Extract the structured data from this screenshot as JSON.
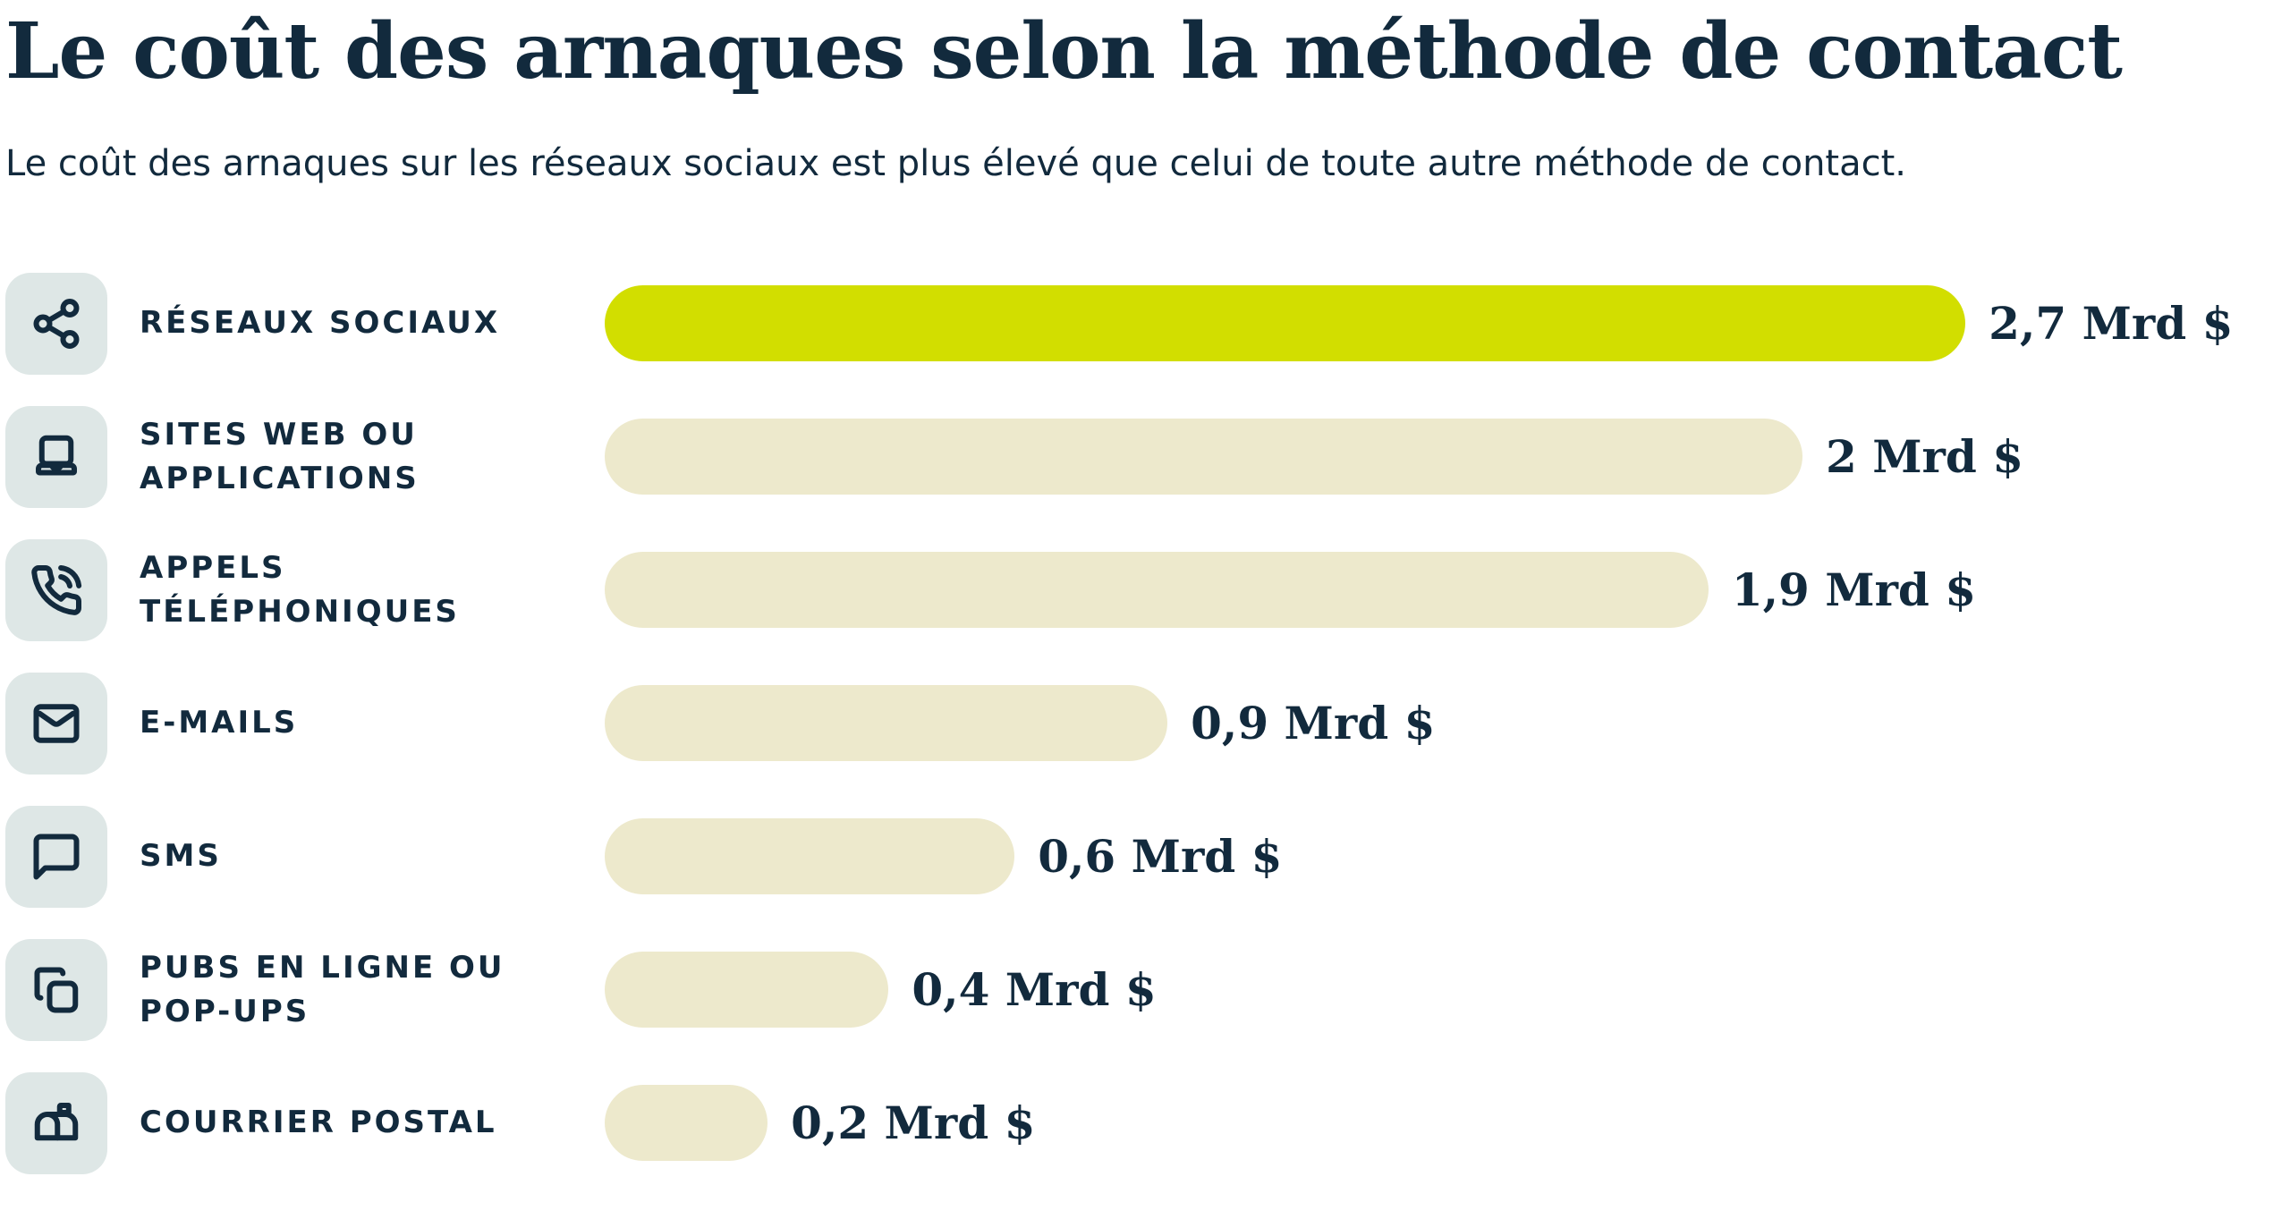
{
  "header": {
    "title": "Le coût des arnaques selon la méthode de contact",
    "subtitle": "Le coût des arnaques sur les réseaux sociaux est plus élevé que celui de toute autre méthode de contact."
  },
  "colors": {
    "text_navy": "#122a3d",
    "bar_highlight": "#d2de00",
    "bar_default": "#ede9cc",
    "icon_tile_bg": "#dee7e6",
    "background": "#ffffff"
  },
  "chart_data": {
    "type": "bar",
    "orientation": "horizontal",
    "title": "Le coût des arnaques selon la méthode de contact",
    "subtitle": "Le coût des arnaques sur les réseaux sociaux est plus élevé que celui de toute autre méthode de contact.",
    "unit": "Mrd $ (milliards de dollars)",
    "x_range": [
      0,
      2.7
    ],
    "grid": false,
    "legend": false,
    "categories": [
      "Réseaux sociaux",
      "Sites web ou applications",
      "Appels téléphoniques",
      "E-mails",
      "SMS",
      "Pubs en ligne ou pop-ups",
      "Courrier postal"
    ],
    "values": [
      2.7,
      2,
      1.9,
      0.9,
      0.6,
      0.4,
      0.2
    ],
    "rows": [
      {
        "label_lines": [
          "RÉSEAUX SOCIAUX"
        ],
        "icon": "share-icon",
        "value": 2.7,
        "value_label": "2,7 Mrd $",
        "highlight": true,
        "bar_pct": 81
      },
      {
        "label_lines": [
          "SITES WEB OU",
          "APPLICATIONS"
        ],
        "icon": "laptop-icon",
        "value": 2,
        "value_label": "2 Mrd $",
        "highlight": false,
        "bar_pct": 71.3
      },
      {
        "label_lines": [
          "APPELS",
          "TÉLÉPHONIQUES"
        ],
        "icon": "phone-call-icon",
        "value": 1.9,
        "value_label": "1,9 Mrd $",
        "highlight": false,
        "bar_pct": 65.7
      },
      {
        "label_lines": [
          "E-MAILS"
        ],
        "icon": "mail-icon",
        "value": 0.9,
        "value_label": "0,9 Mrd $",
        "highlight": false,
        "bar_pct": 33.5
      },
      {
        "label_lines": [
          "SMS"
        ],
        "icon": "message-square-icon",
        "value": 0.6,
        "value_label": "0,6 Mrd $",
        "highlight": false,
        "bar_pct": 24.4
      },
      {
        "label_lines": [
          "PUBS EN LIGNE OU",
          "POP-UPS"
        ],
        "icon": "copy-icon",
        "value": 0.4,
        "value_label": "0,4 Mrd $",
        "highlight": false,
        "bar_pct": 16.9
      },
      {
        "label_lines": [
          "COURRIER POSTAL"
        ],
        "icon": "mailbox-icon",
        "value": 0.2,
        "value_label": "0,2 Mrd $",
        "highlight": false,
        "bar_pct": 9.7
      }
    ]
  }
}
